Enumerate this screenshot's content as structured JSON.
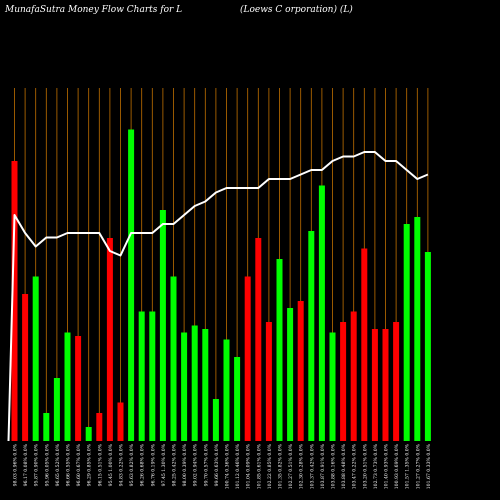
{
  "chart_data": {
    "type": "bar",
    "title": "MunafaSutra  Money Flow  Charts for L",
    "subtitle": "(Loews C                              orporation) (L)",
    "xlabel": "",
    "ylabel": "",
    "grid": true,
    "categories": [
      "98.03 0.96% 0.0%",
      "96.17 0.08% 0.0%",
      "95.87 0.90% 0.0%",
      "95.96 0.05% 0.0%",
      "96.65 0.52% 0.0%",
      "96.66 0.55% 0.0%",
      "96.60 0.67% 0.0%",
      "96.29 0.85% 0.0%",
      "96.15 0.51% 0.0%",
      "95.45 1.00% 0.0%",
      "94.83 0.22% 0.0%",
      "95.63 0.82% 0.0%",
      "96.26 0.68% 0.0%",
      "96.76 0.19% 0.0%",
      "97.45 1.30% 0.0%",
      "98.25 0.42% 0.0%",
      "98.00 0.39% 0.0%",
      "99.02 0.94% 0.0%",
      "99.70 0.57% 0.0%",
      "99.66 0.63% 0.0%",
      "100.74 0.36% 0.0%",
      "101.12 0.46% 0.0%",
      "101.04 0.09% 0.0%",
      "101.85 0.61% 0.0%",
      "102.22 0.85% 0.0%",
      "101.35 0.82% 0.0%",
      "102.27 0.51% 0.0%",
      "102.30 0.28% 0.0%",
      "103.37 0.42% 0.0%",
      "103.87 0.91% 0.0%",
      "103.88 0.16% 0.0%",
      "103.88 0.48% 0.0%",
      "103.47 0.22% 0.0%",
      "103.20 0.51% 0.0%",
      "102.73 0.73% 0.0%",
      "101.40 0.93% 0.0%",
      "100.93 0.69% 0.0%",
      "101.57 1.35% 0.0%",
      "101.27 0.27% 0.0%",
      "101.67 0.33% 0.0%"
    ],
    "directions": [
      "red",
      "red",
      "green",
      "green",
      "green",
      "green",
      "red",
      "green",
      "red",
      "red",
      "red",
      "green",
      "green",
      "green",
      "green",
      "green",
      "green",
      "green",
      "green",
      "green",
      "green",
      "green",
      "red",
      "red",
      "red",
      "green",
      "green",
      "red",
      "green",
      "green",
      "green",
      "red",
      "red",
      "red",
      "red",
      "red",
      "red",
      "green",
      "green",
      "green"
    ],
    "values": [
      80,
      42,
      47,
      8,
      18,
      31,
      30,
      4,
      8,
      58,
      11,
      89,
      37,
      37,
      66,
      47,
      31,
      33,
      32,
      12,
      29,
      24,
      47,
      58,
      34,
      52,
      38,
      40,
      60,
      73,
      31,
      34,
      37,
      55,
      32,
      32,
      34,
      62,
      64,
      54
    ],
    "price_line": [
      230,
      226,
      223,
      225,
      225,
      226,
      226,
      226,
      226,
      222,
      221,
      226,
      226,
      226,
      228,
      228,
      230,
      232,
      233,
      235,
      236,
      236,
      236,
      236,
      238,
      238,
      238,
      239,
      240,
      240,
      242,
      243,
      243,
      244,
      244,
      242,
      242,
      240,
      238,
      239
    ],
    "ylim": [
      0,
      100
    ],
    "price_ylim": [
      180,
      260
    ],
    "colors": {
      "green": "#00ff00",
      "red": "#ff0000",
      "grid": "#c07000",
      "line": "#ffffff",
      "background": "#000000",
      "label": "#ffffff"
    }
  }
}
